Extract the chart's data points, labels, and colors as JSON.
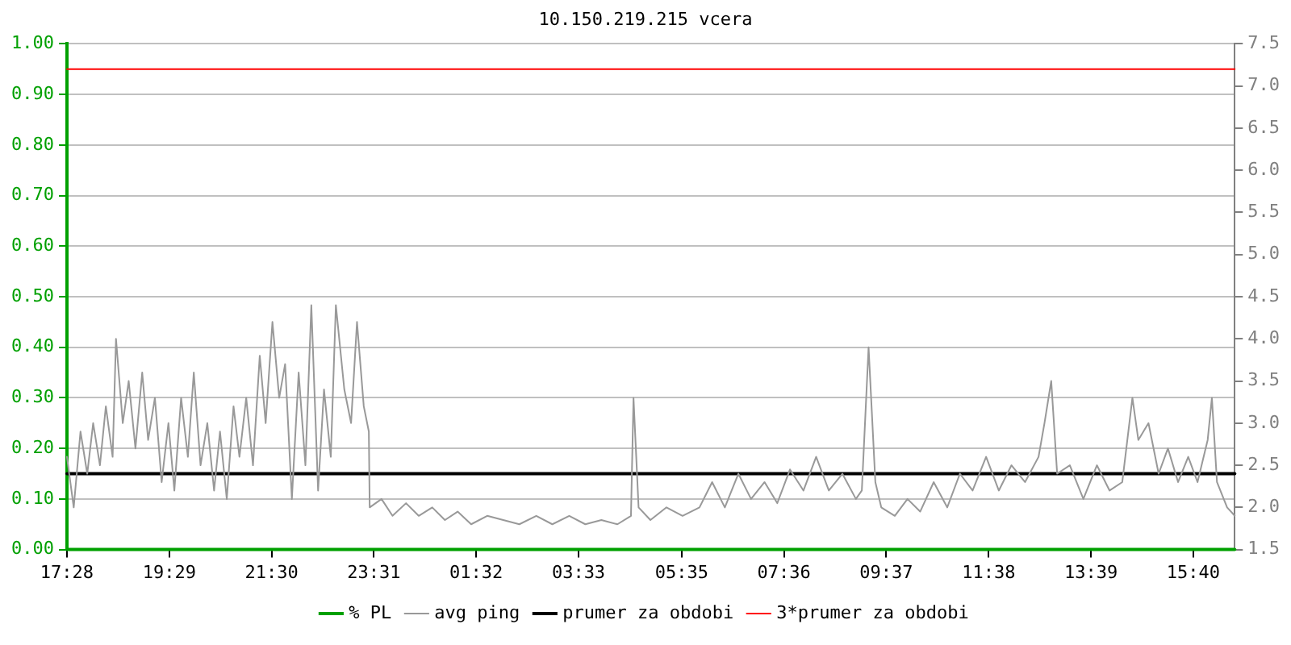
{
  "chart_data": {
    "type": "line",
    "title": "10.150.219.215 vcera",
    "xlim": [
      "--01-01T17:28",
      "--01-02T16:29"
    ],
    "xticks": [
      {
        "value": "--01-01T17:28",
        "label": "17:28"
      },
      {
        "value": "--01-01T19:29",
        "label": "19:29"
      },
      {
        "value": "--01-01T21:30",
        "label": "21:30"
      },
      {
        "value": "--01-01T23:31",
        "label": "23:31"
      },
      {
        "value": "--01-02T01:32",
        "label": "01:32"
      },
      {
        "value": "--01-02T03:33",
        "label": "03:33"
      },
      {
        "value": "--01-02T05:35",
        "label": "05:35"
      },
      {
        "value": "--01-02T07:36",
        "label": "07:36"
      },
      {
        "value": "--01-02T09:37",
        "label": "09:37"
      },
      {
        "value": "--01-02T11:38",
        "label": "11:38"
      },
      {
        "value": "--01-02T13:39",
        "label": "13:39"
      },
      {
        "value": "--01-02T15:40",
        "label": "15:40"
      }
    ],
    "ylim": [
      0,
      1
    ],
    "yticks": [
      {
        "value": 0,
        "label": "0.00"
      },
      {
        "value": 0.1,
        "label": "0.10"
      },
      {
        "value": 0.2,
        "label": "0.20"
      },
      {
        "value": 0.3,
        "label": "0.30"
      },
      {
        "value": 0.4,
        "label": "0.40"
      },
      {
        "value": 0.5,
        "label": "0.50"
      },
      {
        "value": 0.6,
        "label": "0.60"
      },
      {
        "value": 0.7,
        "label": "0.70"
      },
      {
        "value": 0.8,
        "label": "0.80"
      },
      {
        "value": 0.9,
        "label": "0.90"
      },
      {
        "value": 1,
        "label": "1.00"
      }
    ],
    "y2lim": [
      1.5,
      7.5
    ],
    "y2ticks": [
      1.5,
      {
        "value": 2,
        "label": "2.0"
      },
      2.5,
      {
        "value": 3,
        "label": "3.0"
      },
      3.5,
      {
        "value": 4,
        "label": "4.0"
      },
      4.5,
      {
        "value": 5,
        "label": "5.0"
      },
      5.5,
      {
        "value": 6,
        "label": "6.0"
      },
      6.5,
      {
        "value": 7,
        "label": "7.0"
      },
      7.5
    ],
    "grid": "y",
    "legend": "bottom",
    "marker": "none",
    "line_style": "solid",
    "series": [
      {
        "name": "% PL",
        "color": "#00a000",
        "axis": "y",
        "x": [
          "--01-01T17:28",
          "--01-02T16:29"
        ],
        "values": [
          0,
          0
        ]
      },
      {
        "name": "avg ping",
        "color": "#999999",
        "axis": "y2",
        "x": [
          "--01-01T17:28",
          "--01-01T17:36",
          "--01-01T17:44",
          "--01-01T17:52",
          "--01-01T17:59",
          "--01-01T18:07",
          "--01-01T18:14",
          "--01-01T18:22",
          "--01-01T18:26",
          "--01-01T18:34",
          "--01-01T18:41",
          "--01-01T18:49",
          "--01-01T18:57",
          "--01-01T19:04",
          "--01-01T19:12",
          "--01-01T19:20",
          "--01-01T19:28",
          "--01-01T19:35",
          "--01-01T19:43",
          "--01-01T19:51",
          "--01-01T19:58",
          "--01-01T20:06",
          "--01-01T20:14",
          "--01-01T20:22",
          "--01-01T20:29",
          "--01-01T20:37",
          "--01-01T20:45",
          "--01-01T20:52",
          "--01-01T21:00",
          "--01-01T21:08",
          "--01-01T21:16",
          "--01-01T21:23",
          "--01-01T21:31",
          "--01-01T21:39",
          "--01-01T21:46",
          "--01-01T21:54",
          "--01-01T22:02",
          "--01-01T22:10",
          "--01-01T22:17",
          "--01-01T22:25",
          "--01-01T22:32",
          "--01-01T22:40",
          "--01-01T22:46",
          "--01-01T22:56",
          "--01-01T23:04",
          "--01-01T23:11",
          "--01-01T23:19",
          "--01-01T23:25",
          "--01-01T23:26",
          "--01-01T23:40",
          "--01-01T23:53",
          "--01-02T00:09",
          "--01-02T00:24",
          "--01-02T00:40",
          "--01-02T00:55",
          "--01-02T01:10",
          "--01-02T01:26",
          "--01-02T01:45",
          "--01-02T02:04",
          "--01-02T02:23",
          "--01-02T02:43",
          "--01-02T03:02",
          "--01-02T03:22",
          "--01-02T03:41",
          "--01-02T04:00",
          "--01-02T04:19",
          "--01-02T04:35",
          "--01-02T04:38",
          "--01-02T04:44",
          "--01-02T04:58",
          "--01-02T05:17",
          "--01-02T05:36",
          "--01-02T05:56",
          "--01-02T06:11",
          "--01-02T06:26",
          "--01-02T06:42",
          "--01-02T06:57",
          "--01-02T07:13",
          "--01-02T07:28",
          "--01-02T07:43",
          "--01-02T07:59",
          "--01-02T08:14",
          "--01-02T08:29",
          "--01-02T08:45",
          "--01-02T09:01",
          "--01-02T09:08",
          "--01-02T09:16",
          "--01-02T09:24",
          "--01-02T09:31",
          "--01-02T09:47",
          "--01-02T10:02",
          "--01-02T10:17",
          "--01-02T10:33",
          "--01-02T10:49",
          "--01-02T11:04",
          "--01-02T11:19",
          "--01-02T11:35",
          "--01-02T11:50",
          "--01-02T12:05",
          "--01-02T12:21",
          "--01-02T12:37",
          "--01-02T12:44",
          "--01-02T12:52",
          "--01-02T12:59",
          "--01-02T13:14",
          "--01-02T13:30",
          "--01-02T13:46",
          "--01-02T14:01",
          "--01-02T14:16",
          "--01-02T14:28",
          "--01-02T14:35",
          "--01-02T14:47",
          "--01-02T14:59",
          "--01-02T15:10",
          "--01-02T15:22",
          "--01-02T15:34",
          "--01-02T15:45",
          "--01-02T15:57",
          "--01-02T16:02",
          "--01-02T16:08",
          "--01-02T16:20",
          "--01-02T16:29"
        ],
        "values": [
          2.6,
          2.0,
          2.9,
          2.4,
          3.0,
          2.5,
          3.2,
          2.6,
          4.0,
          3.0,
          3.5,
          2.7,
          3.6,
          2.8,
          3.3,
          2.3,
          3.0,
          2.2,
          3.3,
          2.6,
          3.6,
          2.5,
          3.0,
          2.2,
          2.9,
          2.1,
          3.2,
          2.6,
          3.3,
          2.5,
          3.8,
          3.0,
          4.2,
          3.3,
          3.7,
          2.1,
          3.6,
          2.5,
          4.4,
          2.2,
          3.4,
          2.6,
          4.4,
          3.4,
          3.0,
          4.2,
          3.2,
          2.9,
          2.0,
          2.1,
          1.9,
          2.05,
          1.9,
          2.0,
          1.85,
          1.95,
          1.8,
          1.9,
          1.85,
          1.8,
          1.9,
          1.8,
          1.9,
          1.8,
          1.85,
          1.8,
          1.9,
          3.3,
          2.0,
          1.85,
          2.0,
          1.9,
          2.0,
          2.3,
          2.0,
          2.4,
          2.1,
          2.3,
          2.05,
          2.45,
          2.2,
          2.6,
          2.2,
          2.4,
          2.1,
          2.2,
          3.9,
          2.3,
          2.0,
          1.9,
          2.1,
          1.95,
          2.3,
          2.0,
          2.4,
          2.2,
          2.6,
          2.2,
          2.5,
          2.3,
          2.6,
          3.0,
          3.5,
          2.4,
          2.5,
          2.1,
          2.5,
          2.2,
          2.3,
          3.3,
          2.8,
          3.0,
          2.4,
          2.7,
          2.3,
          2.6,
          2.3,
          2.8,
          3.3,
          2.3,
          2.0,
          1.9
        ]
      },
      {
        "name": "prumer za obdobi",
        "color": "#000000",
        "axis": "y2",
        "x": [
          "--01-01T17:28",
          "--01-02T16:29"
        ],
        "values": [
          2.4,
          2.4
        ]
      },
      {
        "name": "3*prumer za obdobi",
        "color": "#ff0000",
        "axis": "y2",
        "x": [
          "--01-01T17:28",
          "--01-02T16:29"
        ],
        "values": [
          7.2,
          7.2
        ]
      }
    ]
  }
}
